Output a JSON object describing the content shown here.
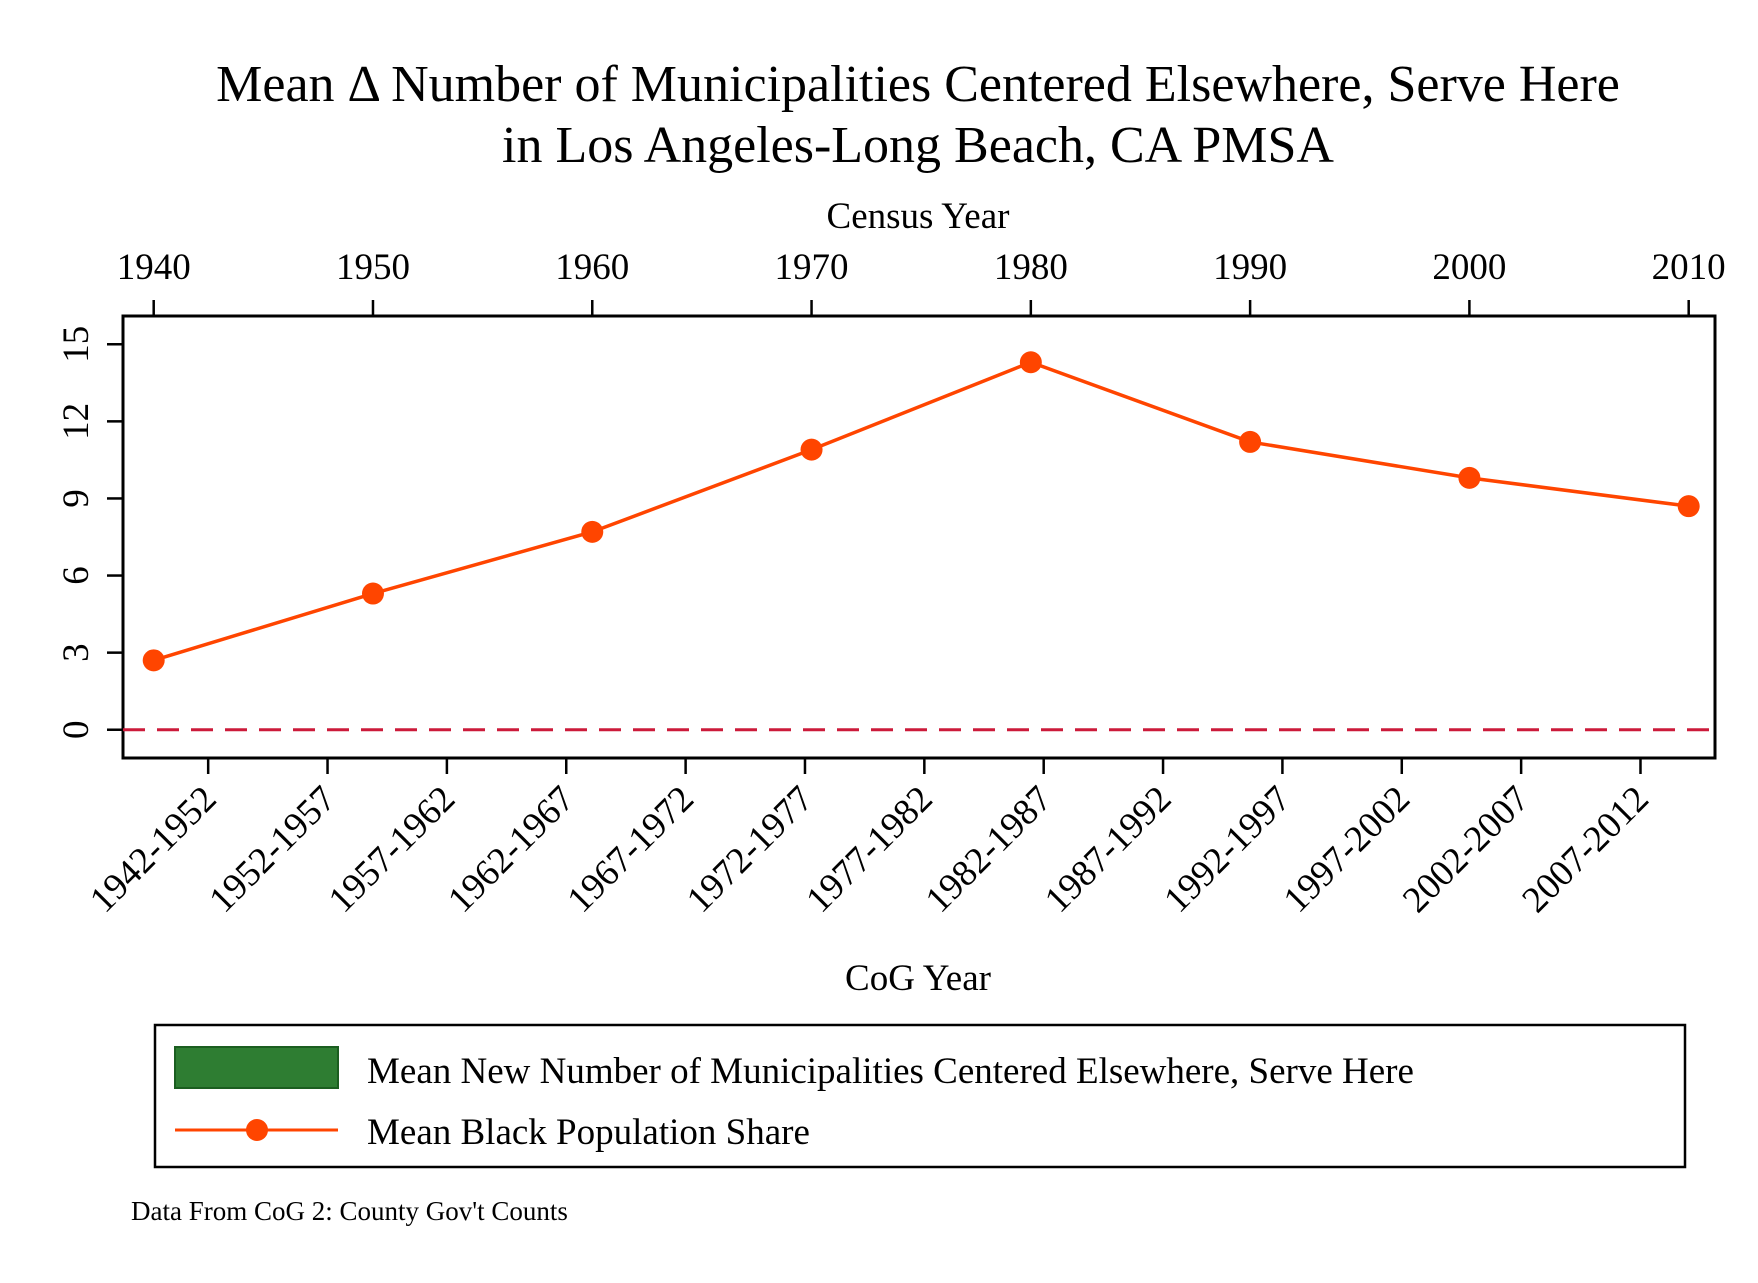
{
  "chart_data": {
    "type": "line",
    "title": [
      "Mean Δ Number of Municipalities Centered Elsewhere, Serve Here",
      "in Los Angeles-Long Beach, CA PMSA"
    ],
    "top_axis": {
      "label": "Census Year",
      "ticks": [
        "1940",
        "1950",
        "1960",
        "1970",
        "1980",
        "1990",
        "2000",
        "2010"
      ]
    },
    "bottom_axis": {
      "label": "CoG Year",
      "ticks": [
        "1942-1952",
        "1952-1957",
        "1957-1962",
        "1962-1967",
        "1967-1972",
        "1972-1977",
        "1977-1982",
        "1982-1987",
        "1987-1992",
        "1992-1997",
        "1997-2002",
        "2002-2007",
        "2007-2012"
      ]
    },
    "y_axis": {
      "ticks": [
        "0",
        "3",
        "6",
        "9",
        "12",
        "15"
      ],
      "ylim": [
        -1.1,
        16.1
      ]
    },
    "x_range": [
      1938.6,
      2011.2
    ],
    "series": [
      {
        "name": "Mean Black Population Share",
        "color": "#ff4500",
        "marker": "circle",
        "x": [
          1940,
          1950,
          1960,
          1970,
          1980,
          1990,
          2000,
          2010
        ],
        "y": [
          2.7,
          5.3,
          7.7,
          10.9,
          14.3,
          11.2,
          9.8,
          8.7
        ]
      }
    ],
    "reference_line": {
      "y": 0,
      "style": "dashed",
      "color": "#cc1a3a"
    },
    "legend": {
      "placement": "bottom",
      "entries": [
        {
          "label": "Mean New Number of Municipalities Centered Elsewhere, Serve Here",
          "swatch": "bar",
          "color": "#2e7d32"
        },
        {
          "label": "Mean Black Population Share",
          "swatch": "line-marker",
          "color": "#ff4500"
        }
      ]
    },
    "note": "Data From CoG 2: County Gov't Counts",
    "grid": false
  }
}
